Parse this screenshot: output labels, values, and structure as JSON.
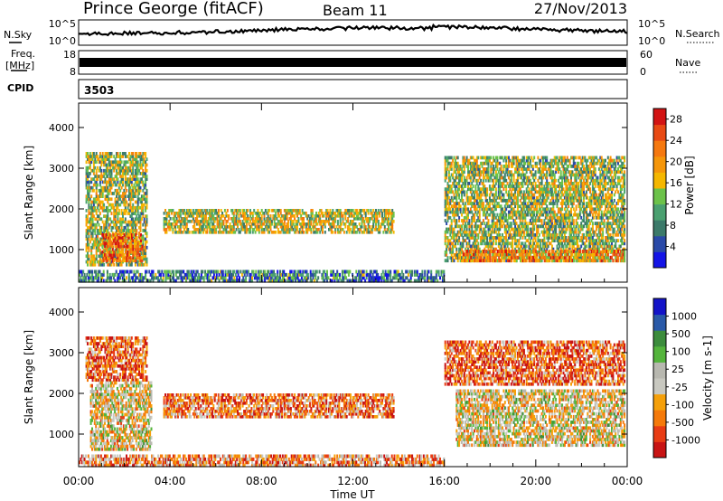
{
  "header": {
    "site": "Prince George (fitACF)",
    "beam": "Beam 11",
    "date": "27/Nov/2013"
  },
  "noise_panel": {
    "left_label": "N.Sky",
    "right_label": "N.Search",
    "left_ticks": [
      "10^5",
      "10^0"
    ],
    "right_ticks": [
      "10^5",
      "10^0"
    ]
  },
  "freq_panel": {
    "left_label_top": "Freq.",
    "left_label_bottom": "[MHz]",
    "right_label": "Nave",
    "left_ticks": [
      "18",
      "8"
    ],
    "right_ticks": [
      "60",
      "0"
    ]
  },
  "cpid": {
    "label": "CPID",
    "value": "3503"
  },
  "colors": {
    "power": [
      "#1414e6",
      "#2a4aa8",
      "#3c7a6a",
      "#4aa070",
      "#6cc24a",
      "#f5b700",
      "#f5960a",
      "#f5780f",
      "#e84a14",
      "#d21414"
    ],
    "velocity": [
      "#c81414",
      "#e83c14",
      "#f57a0a",
      "#f5a00a",
      "#c8c8c0",
      "#b8b8b0",
      "#54b43c",
      "#3c8c3c",
      "#2a5aa8",
      "#1414c8"
    ]
  },
  "chart_data": [
    {
      "type": "heatmap",
      "quantity": "Power",
      "xlabel": "",
      "ylabel": "Slant Range [km]",
      "x_ticks": [
        "00:00",
        "04:00",
        "08:00",
        "12:00",
        "16:00",
        "20:00",
        "00:00"
      ],
      "y_ticks": [
        1000,
        2000,
        3000,
        4000
      ],
      "ylim": [
        200,
        4600
      ],
      "colorbar": {
        "label": "Power [dB]",
        "ticks": [
          4,
          8,
          12,
          16,
          20,
          24,
          28
        ],
        "range": [
          0,
          30
        ]
      },
      "regions": [
        {
          "t0": 0.3,
          "t1": 3.0,
          "r0": 600,
          "r1": 3400,
          "level": 0.45
        },
        {
          "t0": 1.0,
          "t1": 2.8,
          "r0": 700,
          "r1": 1400,
          "level": 0.75
        },
        {
          "t0": 3.7,
          "t1": 13.8,
          "r0": 1400,
          "r1": 2000,
          "level": 0.5
        },
        {
          "t0": 0.0,
          "t1": 16.0,
          "r0": 200,
          "r1": 500,
          "level": 0.25
        },
        {
          "t0": 16.0,
          "t1": 23.9,
          "r0": 700,
          "r1": 3300,
          "level": 0.45
        },
        {
          "t0": 16.8,
          "t1": 23.9,
          "r0": 700,
          "r1": 1000,
          "level": 0.7
        }
      ]
    },
    {
      "type": "heatmap",
      "quantity": "Velocity",
      "xlabel": "Time UT",
      "ylabel": "Slant Range [km]",
      "x_ticks": [
        "00:00",
        "04:00",
        "08:00",
        "12:00",
        "16:00",
        "20:00",
        "00:00"
      ],
      "y_ticks": [
        1000,
        2000,
        3000,
        4000
      ],
      "ylim": [
        200,
        4600
      ],
      "colorbar": {
        "label": "Velocity [m s-1]",
        "ticks": [
          -1000,
          -500,
          -100,
          -25,
          25,
          100,
          500,
          1000
        ]
      },
      "regions": [
        {
          "t0": 0.3,
          "t1": 3.0,
          "r0": 2300,
          "r1": 3400,
          "level": 0.2
        },
        {
          "t0": 0.5,
          "t1": 3.2,
          "r0": 600,
          "r1": 2300,
          "level": 0.45
        },
        {
          "t0": 3.7,
          "t1": 13.8,
          "r0": 1400,
          "r1": 2000,
          "level": 0.25
        },
        {
          "t0": 0.0,
          "t1": 16.0,
          "r0": 200,
          "r1": 500,
          "level": 0.3
        },
        {
          "t0": 16.0,
          "t1": 23.9,
          "r0": 2200,
          "r1": 3300,
          "level": 0.2
        },
        {
          "t0": 16.5,
          "t1": 23.9,
          "r0": 700,
          "r1": 2100,
          "level": 0.45
        }
      ]
    }
  ]
}
